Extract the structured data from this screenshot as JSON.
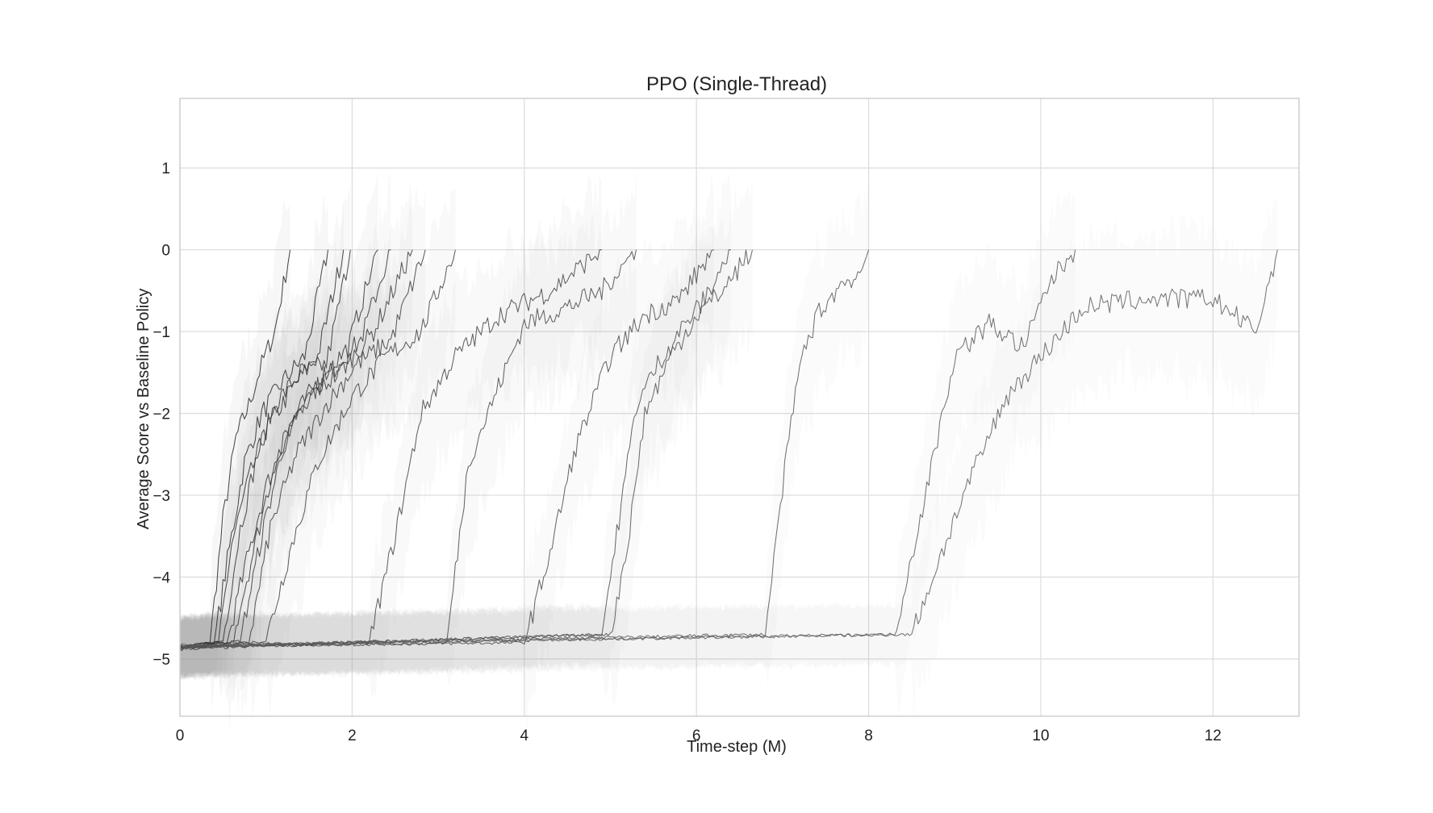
{
  "chart_data": {
    "type": "line",
    "title": "PPO (Single-Thread)",
    "xlabel": "Time-step (M)",
    "ylabel": "Average Score vs Baseline Policy",
    "xlim": [
      0,
      13
    ],
    "ylim": [
      -5.7,
      1.85
    ],
    "xticks": [
      0,
      2,
      4,
      6,
      8,
      10,
      12
    ],
    "yticks": [
      1,
      0,
      -1,
      -2,
      -3,
      -4,
      -5
    ],
    "xtick_labels": [
      "0",
      "2",
      "4",
      "6",
      "8",
      "10",
      "12"
    ],
    "ytick_labels": [
      "1",
      "0",
      "−1",
      "−2",
      "−3",
      "−4",
      "−5"
    ],
    "grid": true,
    "legend": "none",
    "colors": {
      "line": "#333333",
      "band": "#9a9a9a",
      "grid": "#dcdcdc"
    },
    "series": [
      {
        "rise_start": 0.35,
        "end": 1.28,
        "x": [
          0,
          0.35,
          0.5,
          0.65,
          0.8,
          0.95,
          1.1,
          1.28
        ],
        "y": [
          -4.85,
          -4.8,
          -3.3,
          -2.3,
          -1.9,
          -1.4,
          -1.0,
          0.0
        ]
      },
      {
        "rise_start": 0.4,
        "end": 1.72,
        "x": [
          0,
          0.4,
          0.55,
          0.75,
          0.95,
          1.2,
          1.45,
          1.72
        ],
        "y": [
          -4.85,
          -4.8,
          -3.8,
          -2.6,
          -2.0,
          -1.6,
          -1.3,
          0.0
        ]
      },
      {
        "rise_start": 0.45,
        "end": 1.9,
        "x": [
          0,
          0.45,
          0.6,
          0.8,
          1.0,
          1.3,
          1.6,
          1.9
        ],
        "y": [
          -4.86,
          -4.8,
          -3.6,
          -2.8,
          -2.2,
          -1.7,
          -1.3,
          0.0
        ]
      },
      {
        "rise_start": 0.5,
        "end": 1.98,
        "x": [
          0,
          0.5,
          0.7,
          0.9,
          1.1,
          1.4,
          1.7,
          1.98
        ],
        "y": [
          -4.86,
          -4.78,
          -3.4,
          -2.5,
          -1.9,
          -1.5,
          -1.4,
          0.0
        ]
      },
      {
        "rise_start": 0.55,
        "end": 2.3,
        "x": [
          0,
          0.55,
          0.75,
          1.0,
          1.3,
          1.6,
          1.95,
          2.3
        ],
        "y": [
          -4.86,
          -4.8,
          -3.9,
          -2.9,
          -2.1,
          -1.6,
          -1.2,
          0.0
        ]
      },
      {
        "rise_start": 0.6,
        "end": 2.45,
        "x": [
          0,
          0.6,
          0.85,
          1.1,
          1.4,
          1.75,
          2.1,
          2.45
        ],
        "y": [
          -4.87,
          -4.8,
          -3.7,
          -2.6,
          -1.9,
          -1.5,
          -1.1,
          0.0
        ]
      },
      {
        "rise_start": 0.7,
        "end": 2.7,
        "x": [
          0,
          0.7,
          0.95,
          1.2,
          1.5,
          1.85,
          2.25,
          2.7
        ],
        "y": [
          -4.87,
          -4.78,
          -3.5,
          -2.4,
          -1.8,
          -1.5,
          -1.0,
          0.0
        ]
      },
      {
        "rise_start": 0.8,
        "end": 2.85,
        "x": [
          0,
          0.8,
          1.05,
          1.35,
          1.7,
          2.05,
          2.45,
          2.85
        ],
        "y": [
          -4.87,
          -4.8,
          -3.4,
          -2.5,
          -1.9,
          -1.4,
          -1.1,
          0.0
        ]
      },
      {
        "rise_start": 1.0,
        "end": 3.2,
        "x": [
          0,
          1.0,
          1.3,
          1.6,
          2.0,
          2.4,
          2.8,
          3.2
        ],
        "y": [
          -4.88,
          -4.78,
          -3.6,
          -2.6,
          -1.8,
          -1.3,
          -1.0,
          0.0
        ]
      },
      {
        "rise_start": 2.2,
        "end": 4.9,
        "x": [
          0,
          2.2,
          2.5,
          2.8,
          3.2,
          3.7,
          4.3,
          4.9
        ],
        "y": [
          -4.88,
          -4.8,
          -3.5,
          -2.0,
          -1.3,
          -0.8,
          -0.5,
          0.0
        ]
      },
      {
        "rise_start": 3.1,
        "end": 5.3,
        "x": [
          0,
          3.1,
          3.35,
          3.65,
          4.0,
          4.5,
          4.9,
          5.3
        ],
        "y": [
          -4.85,
          -4.8,
          -2.6,
          -1.8,
          -0.9,
          -0.7,
          -0.5,
          0.0
        ]
      },
      {
        "rise_start": 4.0,
        "end": 6.2,
        "x": [
          0,
          4.0,
          4.3,
          4.6,
          5.0,
          5.4,
          5.8,
          6.2
        ],
        "y": [
          -4.85,
          -4.8,
          -3.7,
          -2.4,
          -1.3,
          -0.8,
          -0.6,
          0.0
        ]
      },
      {
        "rise_start": 4.9,
        "end": 6.4,
        "x": [
          0,
          4.9,
          5.1,
          5.3,
          5.55,
          5.8,
          6.1,
          6.4
        ],
        "y": [
          -4.86,
          -4.7,
          -3.3,
          -1.9,
          -1.4,
          -1.0,
          -0.6,
          0.0
        ]
      },
      {
        "rise_start": 5.0,
        "end": 6.65,
        "x": [
          0,
          5.0,
          5.2,
          5.4,
          5.7,
          6.0,
          6.3,
          6.65
        ],
        "y": [
          -4.86,
          -4.7,
          -3.6,
          -2.0,
          -1.3,
          -0.8,
          -0.5,
          0.0
        ]
      },
      {
        "rise_start": 6.8,
        "end": 8.0,
        "x": [
          0,
          6.8,
          7.0,
          7.2,
          7.4,
          7.7,
          7.9,
          8.0
        ],
        "y": [
          -4.84,
          -4.7,
          -2.9,
          -1.4,
          -0.8,
          -0.4,
          -0.3,
          0.0
        ]
      },
      {
        "rise_start": 8.3,
        "end": 10.4,
        "x": [
          0,
          8.3,
          8.7,
          9.0,
          9.4,
          9.8,
          10.1,
          10.4
        ],
        "y": [
          -4.83,
          -4.7,
          -2.8,
          -1.3,
          -0.9,
          -1.2,
          -0.4,
          0.0
        ]
      },
      {
        "rise_start": 8.5,
        "end": 12.75,
        "x": [
          0,
          8.5,
          9.1,
          9.6,
          10.0,
          10.5,
          11.2,
          12.0,
          12.5,
          12.75
        ],
        "y": [
          -4.84,
          -4.7,
          -3.0,
          -1.8,
          -1.3,
          -0.7,
          -0.6,
          -0.6,
          -1.0,
          0.0
        ]
      }
    ]
  }
}
